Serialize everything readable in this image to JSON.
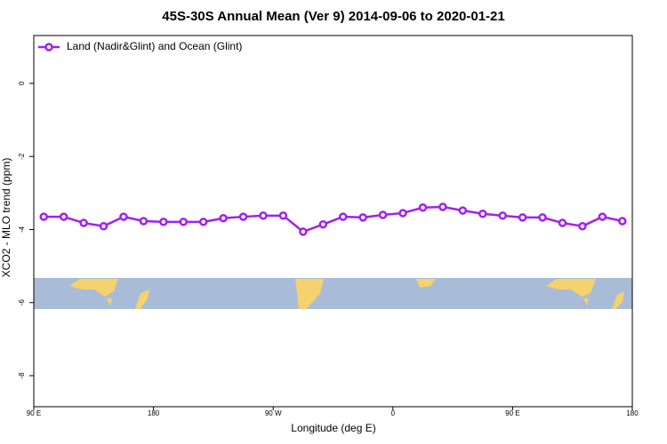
{
  "chart_data": {
    "type": "line",
    "title": "45S-30S Annual Mean (Ver 9)   2014-09-06 to 2020-01-21",
    "x_label": "Longitude (deg E)",
    "y_label": "XCO2 - MLO trend (ppm)",
    "x": [
      97.5,
      112.5,
      127.5,
      142.5,
      157.5,
      172.5,
      187.5,
      202.5,
      217.5,
      232.5,
      247.5,
      262.5,
      277.5,
      292.5,
      307.5,
      322.5,
      337.5,
      352.5,
      367.5,
      382.5,
      397.5,
      412.5,
      427.5,
      442.5,
      457.5,
      472.5,
      487.5,
      502.5,
      517.5,
      532.5
    ],
    "series": [
      {
        "name": "Land (Nadir&Glint) and Ocean (Glint)",
        "color": "#a020f0",
        "values": [
          -3.65,
          -3.65,
          -3.82,
          -3.91,
          -3.65,
          -3.77,
          -3.79,
          -3.79,
          -3.79,
          -3.69,
          -3.65,
          -3.62,
          -3.62,
          -4.06,
          -3.86,
          -3.65,
          -3.67,
          -3.6,
          -3.55,
          -3.4,
          -3.38,
          -3.48,
          -3.57,
          -3.62,
          -3.67,
          -3.67,
          -3.82,
          -3.91,
          -3.65,
          -3.77
        ]
      }
    ],
    "xlim": [
      90,
      540
    ],
    "xticks": [
      {
        "value": 90,
        "label": "90 E"
      },
      180,
      {
        "value": 270,
        "label": "90 W"
      },
      {
        "value": 360,
        "label": "0"
      },
      {
        "value": 450,
        "label": "90 E"
      },
      {
        "value": 540,
        "label": "180"
      }
    ],
    "ylim": [
      -8.85,
      1.31
    ],
    "yticks": [
      0,
      -2,
      -4,
      -6,
      -8
    ],
    "legend": "top-left"
  }
}
